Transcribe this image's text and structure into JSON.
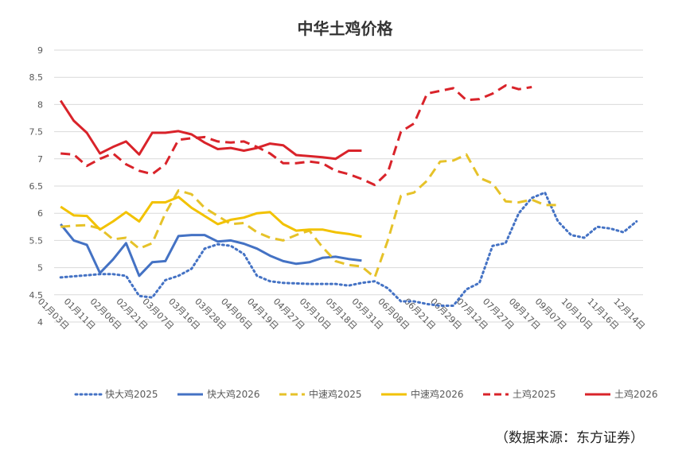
{
  "title": "中华土鸡价格",
  "source_note": "（数据来源：东方证券）",
  "chart_data": {
    "type": "line",
    "title": "中华土鸡价格",
    "xlabel": "",
    "ylabel": "",
    "ylim": [
      4,
      9
    ],
    "yticks": [
      "4",
      "4.5",
      "5",
      "5.5",
      "6",
      "6.5",
      "7",
      "7.5",
      "8",
      "8.5",
      "9"
    ],
    "grid": "horizontal",
    "legend_position": "bottom",
    "x_tick_labels": [
      "01月03日",
      "01月11日",
      "02月06日",
      "02月21日",
      "03月07日",
      "03月16日",
      "03月28日",
      "04月06日",
      "04月19日",
      "04月27日",
      "05月10日",
      "05月18日",
      "05月31日",
      "06月08日",
      "06月21日",
      "06月29日",
      "07月12日",
      "07月27日",
      "08月17日",
      "09月07日",
      "10月10日",
      "11月16日",
      "12月14日"
    ],
    "x_tick_index": [
      0,
      2,
      4,
      6,
      8,
      10,
      12,
      14,
      16,
      18,
      20,
      22,
      24,
      26,
      28,
      30,
      32,
      34,
      36,
      38,
      40,
      42,
      44
    ],
    "x_count": 45,
    "series": [
      {
        "name": "快大鸡2025",
        "color": "#4472C4",
        "dash": "dot",
        "values": [
          4.82,
          4.84,
          4.86,
          4.88,
          4.88,
          4.85,
          4.48,
          4.45,
          4.77,
          4.85,
          4.98,
          5.35,
          5.43,
          5.4,
          5.25,
          4.85,
          4.75,
          4.72,
          4.71,
          4.7,
          4.7,
          4.7,
          4.67,
          4.72,
          4.75,
          4.62,
          4.38,
          4.38,
          4.33,
          4.3,
          4.3,
          4.6,
          4.72,
          5.4,
          5.45,
          6.0,
          6.28,
          6.38,
          5.85,
          5.6,
          5.55,
          5.75,
          5.72,
          5.65,
          5.85
        ]
      },
      {
        "name": "快大鸡2026",
        "color": "#4472C4",
        "dash": "solid",
        "values": [
          5.8,
          5.5,
          5.42,
          4.9,
          5.15,
          5.45,
          4.85,
          5.1,
          5.12,
          5.58,
          5.6,
          5.6,
          5.48,
          5.5,
          5.44,
          5.35,
          5.22,
          5.12,
          5.07,
          5.1,
          5.18,
          5.2,
          5.16,
          5.13
        ]
      },
      {
        "name": "中速鸡2025",
        "color": "#E6C229",
        "dash": "dash",
        "values": [
          5.75,
          5.77,
          5.78,
          5.72,
          5.52,
          5.55,
          5.35,
          5.45,
          6.0,
          6.42,
          6.35,
          6.1,
          5.95,
          5.8,
          5.82,
          5.65,
          5.55,
          5.5,
          5.6,
          5.68,
          5.38,
          5.12,
          5.05,
          5.02,
          4.82,
          5.5,
          6.32,
          6.38,
          6.6,
          6.95,
          6.97,
          7.08,
          6.65,
          6.55,
          6.22,
          6.2,
          6.25,
          6.15,
          6.15
        ]
      },
      {
        "name": "中速鸡2026",
        "color": "#F2C200",
        "dash": "solid",
        "values": [
          6.12,
          5.96,
          5.95,
          5.7,
          5.85,
          6.02,
          5.85,
          6.2,
          6.2,
          6.3,
          6.1,
          5.95,
          5.8,
          5.88,
          5.92,
          6.0,
          6.02,
          5.8,
          5.68,
          5.7,
          5.7,
          5.65,
          5.62,
          5.57
        ]
      },
      {
        "name": "土鸡2025",
        "color": "#D9232A",
        "dash": "dash",
        "values": [
          7.1,
          7.08,
          6.87,
          7.0,
          7.1,
          6.9,
          6.78,
          6.72,
          6.9,
          7.35,
          7.38,
          7.4,
          7.32,
          7.3,
          7.32,
          7.22,
          7.1,
          6.92,
          6.92,
          6.95,
          6.92,
          6.78,
          6.72,
          6.63,
          6.52,
          6.75,
          7.5,
          7.65,
          8.2,
          8.25,
          8.3,
          8.08,
          8.1,
          8.2,
          8.35,
          8.28,
          8.32
        ]
      },
      {
        "name": "土鸡2026",
        "color": "#D9232A",
        "dash": "solid",
        "values": [
          8.07,
          7.7,
          7.48,
          7.1,
          7.22,
          7.32,
          7.08,
          7.48,
          7.48,
          7.51,
          7.45,
          7.3,
          7.18,
          7.2,
          7.15,
          7.2,
          7.28,
          7.25,
          7.07,
          7.05,
          7.03,
          7.0,
          7.15,
          7.15
        ]
      }
    ]
  }
}
